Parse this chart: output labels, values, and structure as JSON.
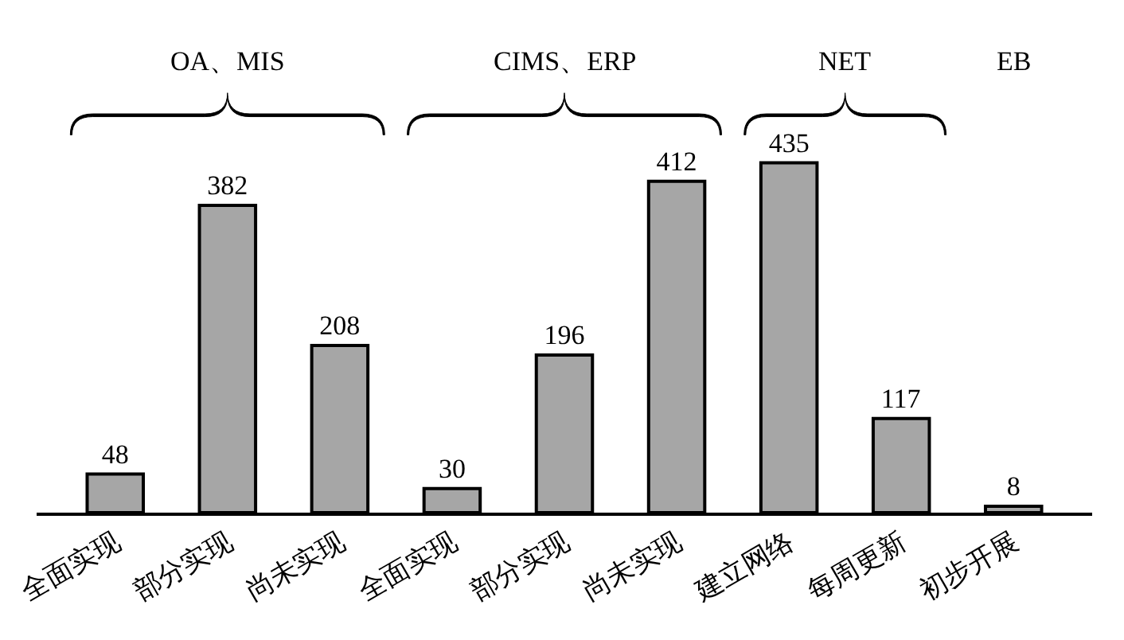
{
  "chart_data": {
    "type": "bar",
    "categories": [
      "全面实现",
      "部分实现",
      "尚未实现",
      "全面实现",
      "部分实现",
      "尚未实现",
      "建立网络",
      "每周更新",
      "初步开展"
    ],
    "values": [
      48,
      382,
      208,
      30,
      196,
      412,
      435,
      117,
      8
    ],
    "color": "#a6a6a6",
    "data_labels": true,
    "legend": false,
    "annotations": [
      "OA、MIS",
      "CIMS、ERP",
      "NET",
      "EB"
    ]
  }
}
